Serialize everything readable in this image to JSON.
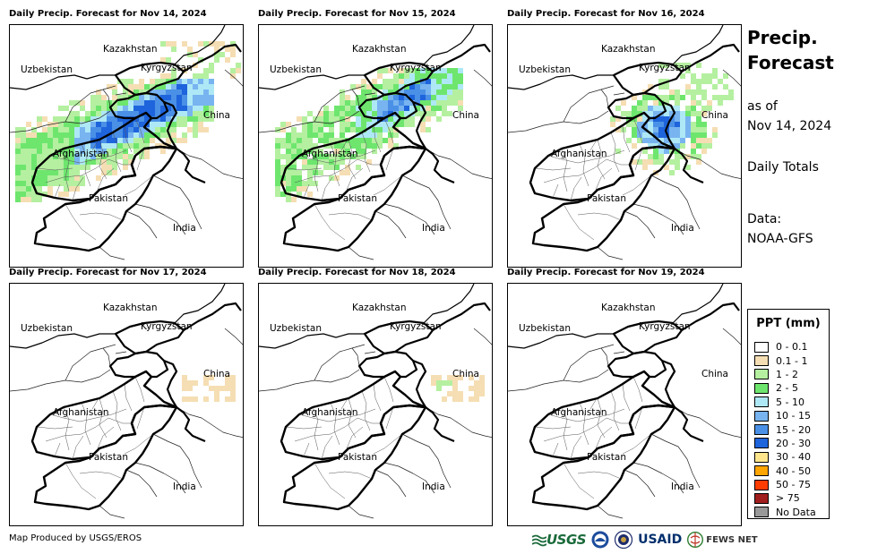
{
  "panels": [
    {
      "title": "Daily Precip. Forecast for Nov 14, 2024",
      "intensity": "heavy"
    },
    {
      "title": "Daily Precip. Forecast for Nov 15, 2024",
      "intensity": "moderate"
    },
    {
      "title": "Daily Precip. Forecast for Nov 16, 2024",
      "intensity": "northeast"
    },
    {
      "title": "Daily Precip. Forecast for Nov 17, 2024",
      "intensity": "trace"
    },
    {
      "title": "Daily Precip. Forecast for Nov 18, 2024",
      "intensity": "trace"
    },
    {
      "title": "Daily Precip. Forecast for Nov 19, 2024",
      "intensity": "none"
    }
  ],
  "map_labels": {
    "kazakhstan": "Kazakhstan",
    "uzbekistan": "Uzbekistan",
    "kyrgyzstan": "Kyrgyzstan",
    "china": "China",
    "afghanistan": "Afghanistan",
    "pakistan": "Pakistan",
    "india": "India"
  },
  "side": {
    "title_line1": "Precip.",
    "title_line2": "Forecast",
    "asof_line1": "as of",
    "asof_line2": "Nov 14, 2024",
    "totals": "Daily Totals",
    "data_line1": "Data:",
    "data_line2": "NOAA-GFS"
  },
  "legend": {
    "title": "PPT (mm)",
    "items": [
      {
        "label": "0 - 0.1",
        "color": "#ffffff"
      },
      {
        "label": "0.1 - 1",
        "color": "#f5deb3"
      },
      {
        "label": "1 - 2",
        "color": "#b4f0a0"
      },
      {
        "label": "2 - 5",
        "color": "#6ee66e"
      },
      {
        "label": "5 - 10",
        "color": "#aee8f6"
      },
      {
        "label": "10 - 15",
        "color": "#78b4f0"
      },
      {
        "label": "15 - 20",
        "color": "#4a90e6"
      },
      {
        "label": "20 - 30",
        "color": "#1e64dc"
      },
      {
        "label": "30 - 40",
        "color": "#ffe68c"
      },
      {
        "label": "40 - 50",
        "color": "#ffa500"
      },
      {
        "label": "50 - 75",
        "color": "#ff3c00"
      },
      {
        "label": "> 75",
        "color": "#a01e1e"
      },
      {
        "label": "No Data",
        "color": "#999999"
      }
    ]
  },
  "footer": {
    "produced_by": "Map Produced by USGS/EROS"
  },
  "logos": {
    "usgs": "USGS",
    "usaid": "USAID",
    "fewsnet": "FEWS NET"
  }
}
